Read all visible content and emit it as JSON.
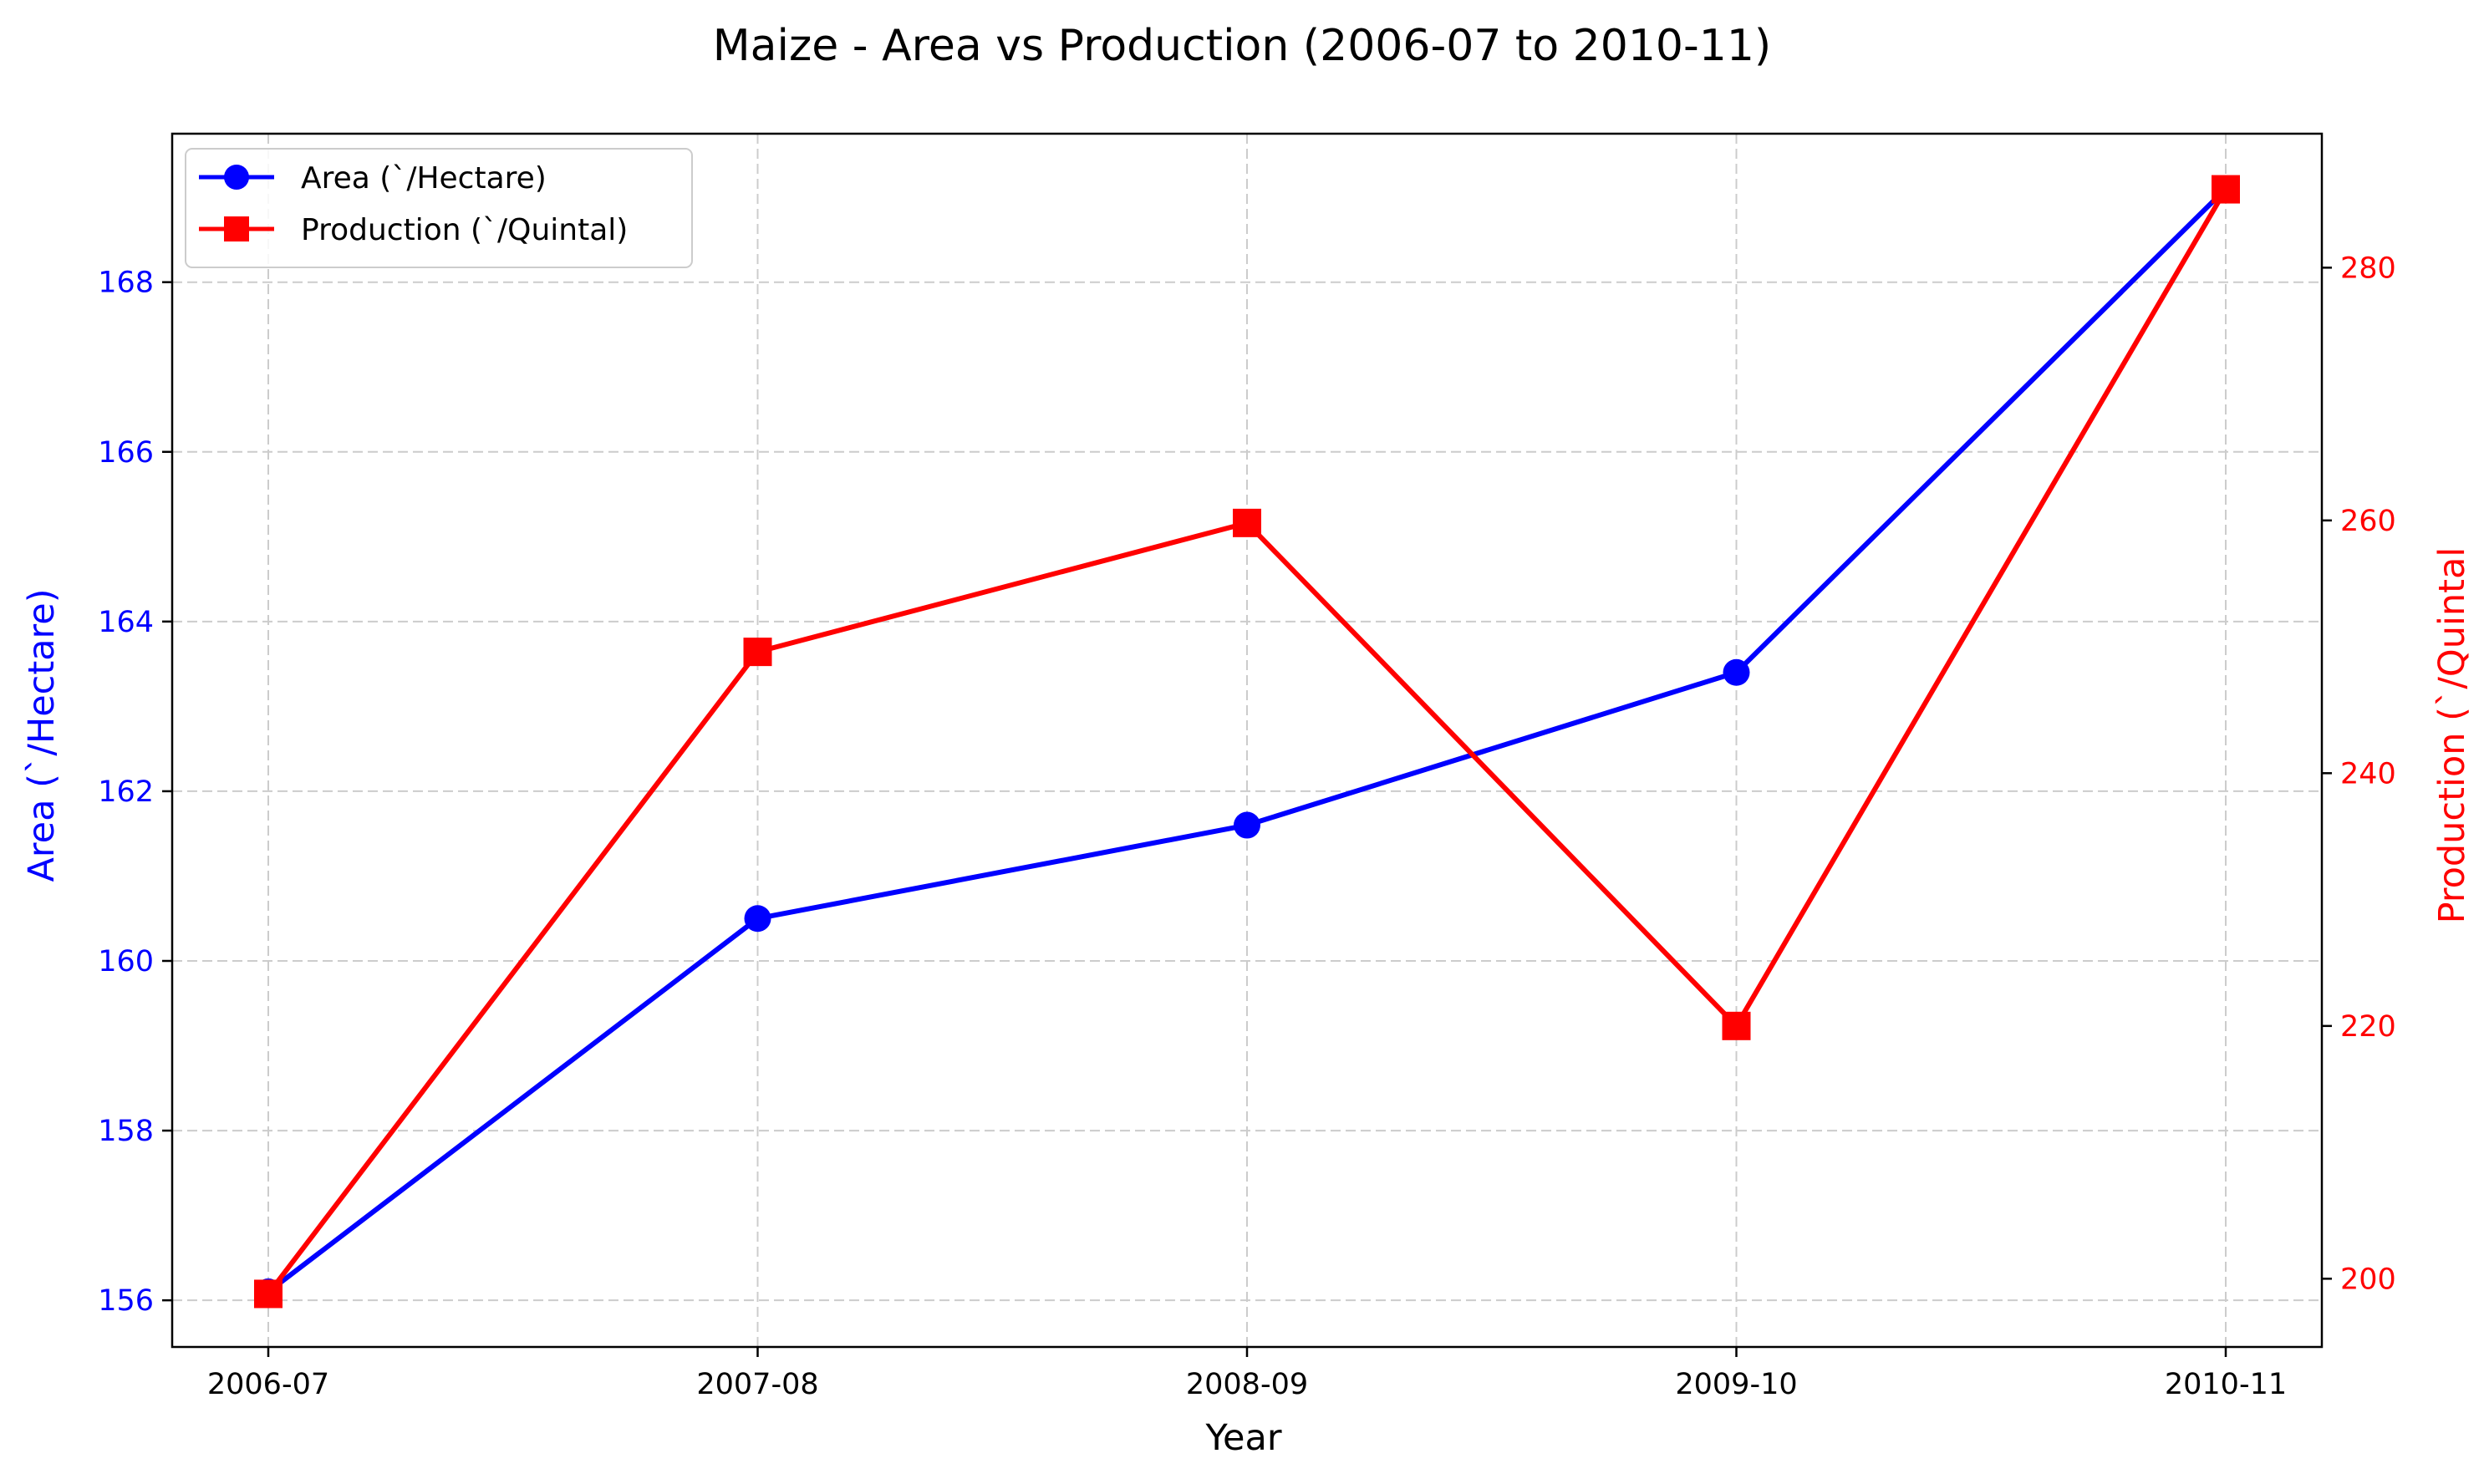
{
  "chart_data": {
    "type": "line",
    "title": "Maize - Area vs Production (2006-07 to 2010-11)",
    "xlabel": "Year",
    "categories": [
      "2006-07",
      "2007-08",
      "2008-09",
      "2009-10",
      "2010-11"
    ],
    "series": [
      {
        "name": "Area (`/Hectare)",
        "axis": "left",
        "ylabel": "Area (`/Hectare)",
        "values": [
          156.1,
          160.5,
          161.6,
          163.4,
          169.1
        ],
        "color": "#0000ff",
        "marker": "circle"
      },
      {
        "name": "Production (`/Quintal)",
        "axis": "right",
        "ylabel": "Production (`/Quintal",
        "values": [
          198.8,
          249.6,
          259.8,
          220.0,
          286.2
        ],
        "color": "#ff0000",
        "marker": "square"
      }
    ],
    "y_left": {
      "ylim": [
        155.45,
        169.75
      ],
      "ticks": [
        156,
        158,
        160,
        162,
        164,
        166,
        168
      ],
      "color": "#0000ff"
    },
    "y_right": {
      "ylim": [
        194.6,
        290.6
      ],
      "ticks": [
        200,
        220,
        240,
        260,
        280
      ],
      "color": "#ff0000"
    },
    "grid": true,
    "legend_position": "top-left"
  }
}
